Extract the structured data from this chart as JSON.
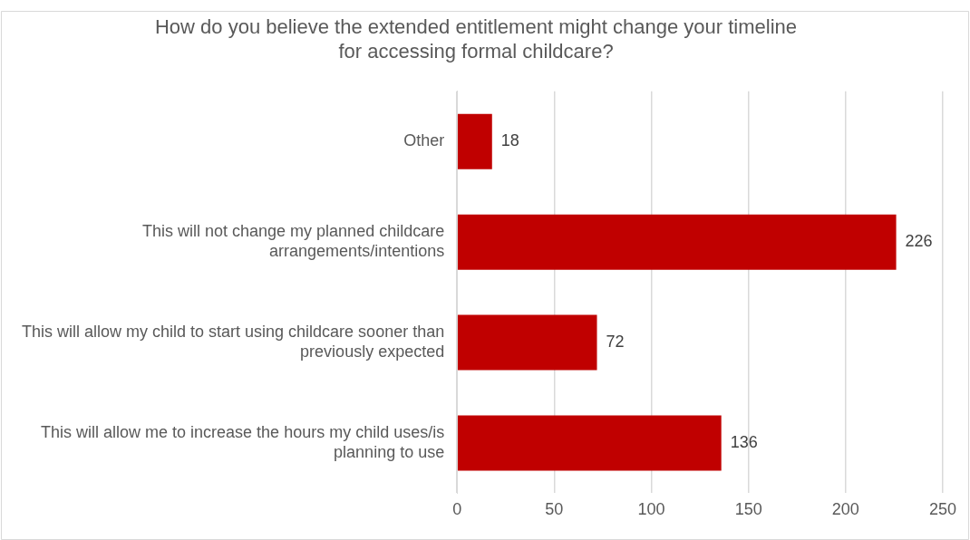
{
  "chart_data": {
    "type": "bar",
    "orientation": "horizontal",
    "title": "How do you believe the extended entitlement might change your timeline for accessing formal childcare?",
    "categories": [
      "Other",
      "This will not change my planned childcare arrangements/intentions",
      "This will allow my child to start using childcare sooner than previously expected",
      "This will allow me to increase the hours my child uses/is planning to use"
    ],
    "values": [
      18,
      226,
      72,
      136
    ],
    "color": "#c00000",
    "xlim": [
      0,
      250
    ],
    "xticks": [
      0,
      50,
      100,
      150,
      200,
      250
    ],
    "grid": "x",
    "data_labels": true,
    "legend": false
  }
}
